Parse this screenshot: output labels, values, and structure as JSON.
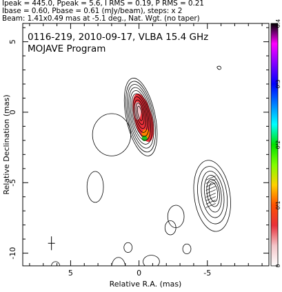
{
  "header": {
    "line1": "Ipeak = 445.0, Ppeak = 5.6, I RMS = 0.19, P RMS = 0.21",
    "line2": "Ibase = 0.60, Pbase = 0.61 (mJy/beam), steps: x 2",
    "line3": "Beam: 1.41x0.49 mas at -5.1 deg., Nat. Wgt. (no taper)"
  },
  "chart_data": {
    "type": "heatmap",
    "title": "0116-219, 2010-09-17, VLBA 15.4 GHz",
    "subtitle": "MOJAVE Program",
    "xlabel": "Relative R.A. (mas)",
    "ylabel": "Relative Declination (mas)",
    "xlim": [
      8.5,
      -9.5
    ],
    "ylim": [
      -10.9,
      6.3
    ],
    "x_ticks": [
      5,
      0,
      -5
    ],
    "y_ticks": [
      5,
      0,
      -5,
      -10
    ],
    "colorbar": {
      "range": [
        0,
        0.4
      ],
      "ticks": [
        0,
        0.1,
        0.2,
        0.3,
        0.4
      ],
      "colors": [
        "#ffffff",
        "#f4c4c8",
        "#e8303a",
        "#ff5000",
        "#ffd000",
        "#80ff00",
        "#00e000",
        "#00ffff",
        "#0080ff",
        "#0000ff",
        "#8000ff",
        "#ff00ff",
        "#000000"
      ]
    },
    "core": {
      "x": 0.0,
      "y": 0.0
    },
    "jet_component": {
      "x": -5.3,
      "y": -5.4
    },
    "beam": {
      "major_mas": 1.41,
      "minor_mas": 0.49,
      "pa_deg": -5.1
    }
  }
}
